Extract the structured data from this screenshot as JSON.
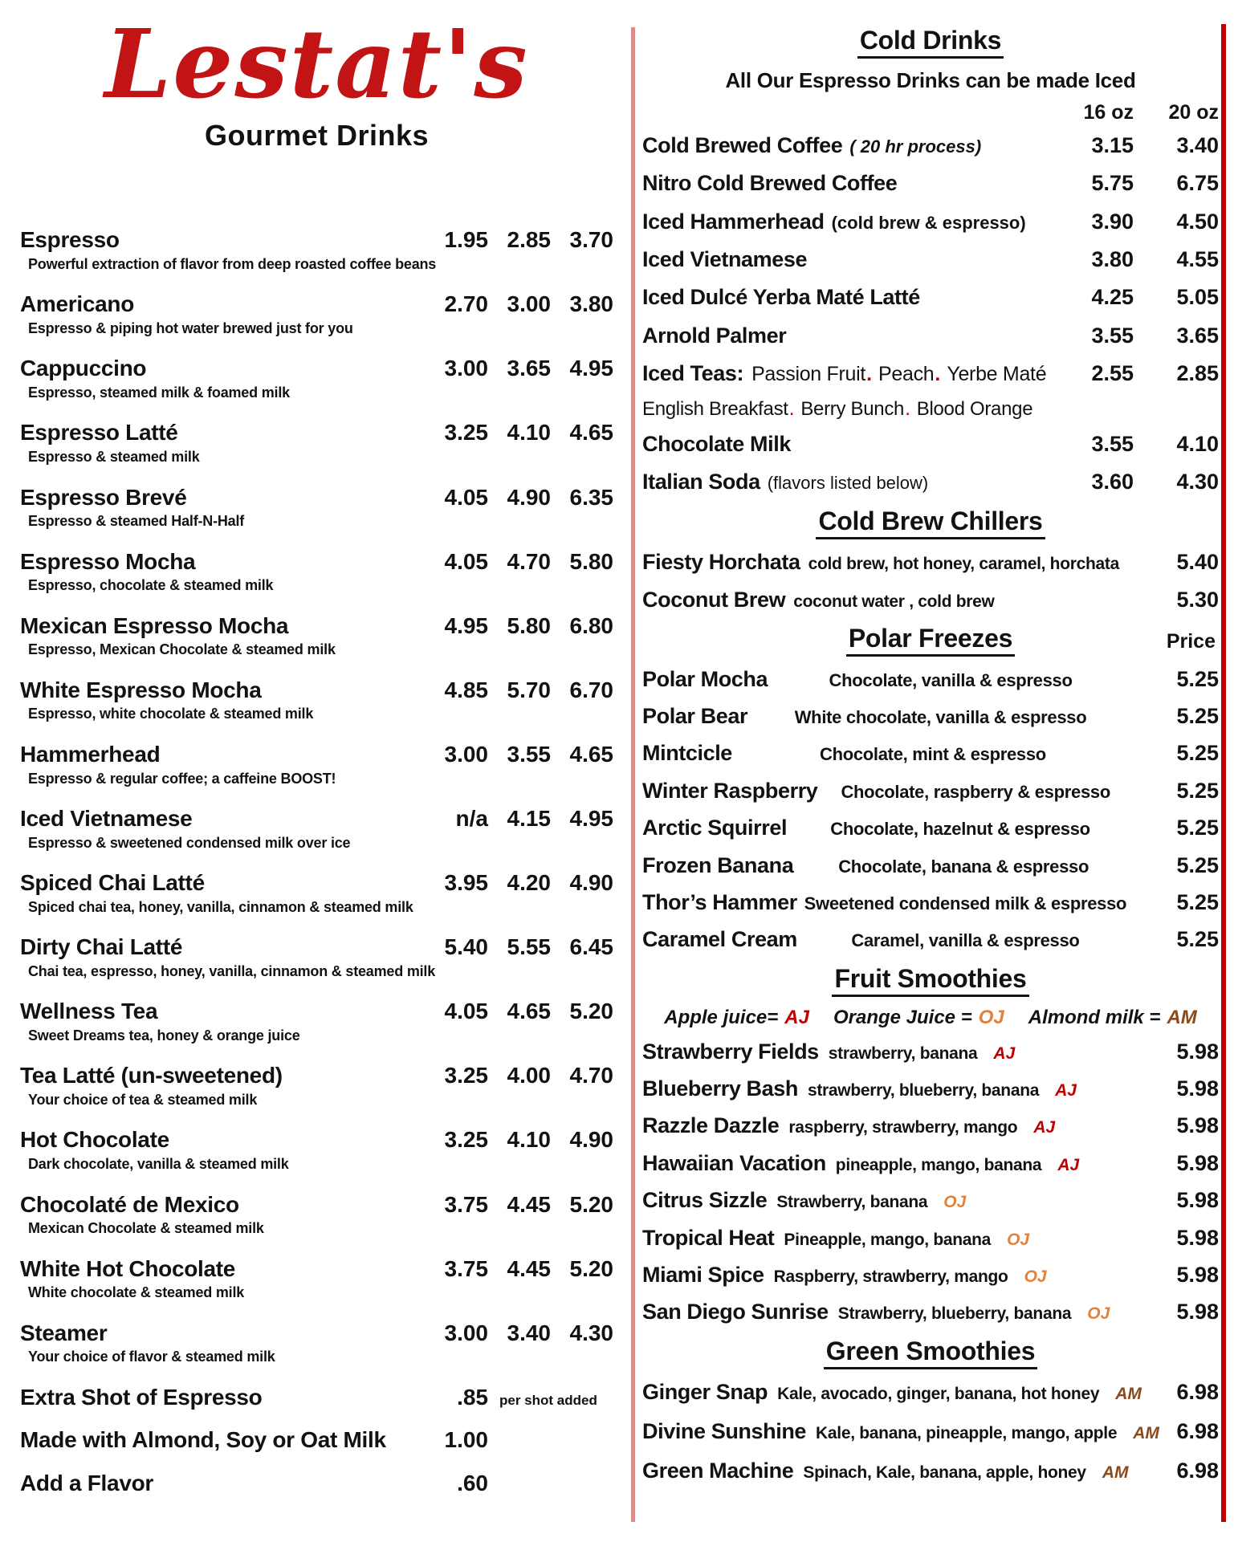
{
  "colors": {
    "logo_red": "#C21414",
    "accent_red": "#C00000",
    "divider_salmon": "#D98C8C",
    "orange": "#E2823A",
    "brown": "#8C4A1A",
    "text": "#121212"
  },
  "brand": {
    "name": "Lestat's",
    "subtitle": "Gourmet Drinks"
  },
  "left_menu": {
    "items": [
      {
        "name": "Espresso",
        "desc": "Powerful extraction of flavor from deep roasted coffee beans",
        "p1": "1.95",
        "p2": "2.85",
        "p3": "3.70"
      },
      {
        "name": "Americano",
        "desc": "Espresso & piping hot water brewed just for you",
        "p1": "2.70",
        "p2": "3.00",
        "p3": "3.80"
      },
      {
        "name": "Cappuccino",
        "desc": "Espresso, steamed milk & foamed milk",
        "p1": "3.00",
        "p2": "3.65",
        "p3": "4.95"
      },
      {
        "name": "Espresso Latté",
        "desc": "Espresso & steamed milk",
        "p1": "3.25",
        "p2": "4.10",
        "p3": "4.65"
      },
      {
        "name": "Espresso Brevé",
        "desc": "Espresso & steamed Half-N-Half",
        "p1": "4.05",
        "p2": "4.90",
        "p3": "6.35"
      },
      {
        "name": "Espresso Mocha",
        "desc": "Espresso, chocolate & steamed milk",
        "p1": "4.05",
        "p2": "4.70",
        "p3": "5.80"
      },
      {
        "name": "Mexican Espresso Mocha",
        "desc": "Espresso, Mexican Chocolate & steamed milk",
        "p1": "4.95",
        "p2": "5.80",
        "p3": "6.80"
      },
      {
        "name": "White Espresso Mocha",
        "desc": "Espresso, white chocolate & steamed milk",
        "p1": "4.85",
        "p2": "5.70",
        "p3": "6.70"
      },
      {
        "name": "Hammerhead",
        "desc": "Espresso & regular coffee; a caffeine BOOST!",
        "p1": "3.00",
        "p2": "3.55",
        "p3": "4.65"
      },
      {
        "name": "Iced Vietnamese",
        "desc": "Espresso & sweetened condensed milk over ice",
        "p1": "n/a",
        "p2": "4.15",
        "p3": "4.95"
      },
      {
        "name": "Spiced Chai Latté",
        "desc": "Spiced chai tea, honey, vanilla, cinnamon & steamed milk",
        "p1": "3.95",
        "p2": "4.20",
        "p3": "4.90"
      },
      {
        "name": "Dirty Chai Latté",
        "desc": "Chai tea, espresso, honey, vanilla, cinnamon & steamed milk",
        "p1": "5.40",
        "p2": "5.55",
        "p3": "6.45"
      },
      {
        "name": "Wellness Tea",
        "desc": "Sweet Dreams tea, honey & orange juice",
        "p1": "4.05",
        "p2": "4.65",
        "p3": "5.20"
      },
      {
        "name": "Tea Latté  (un-sweetened)",
        "desc": "Your choice of tea & steamed milk",
        "p1": "3.25",
        "p2": "4.00",
        "p3": "4.70"
      },
      {
        "name": "Hot Chocolate",
        "desc": "Dark chocolate, vanilla & steamed milk",
        "p1": "3.25",
        "p2": "4.10",
        "p3": "4.90"
      },
      {
        "name": "Chocolaté de Mexico",
        "desc": "Mexican Chocolate & steamed milk",
        "p1": "3.75",
        "p2": "4.45",
        "p3": "5.20"
      },
      {
        "name": "White Hot Chocolate",
        "desc": "White chocolate & steamed milk",
        "p1": "3.75",
        "p2": "4.45",
        "p3": "5.20"
      },
      {
        "name": "Steamer",
        "desc": "Your choice of flavor & steamed milk",
        "p1": "3.00",
        "p2": "3.40",
        "p3": "4.30"
      }
    ],
    "extras": [
      {
        "name": "Extra Shot of Espresso",
        "price": ".85",
        "note": "per shot added"
      },
      {
        "name": "Made with Almond, Soy or Oat Milk",
        "price": "1.00",
        "note": ""
      },
      {
        "name": "Add a Flavor",
        "price": ".60",
        "note": ""
      }
    ]
  },
  "cold_drinks": {
    "title": "Cold Drinks",
    "subtitle": "All Our Espresso Drinks can be made Iced",
    "size_16": "16 oz",
    "size_20": "20 oz",
    "items_top": [
      {
        "name": "Cold Brewed Coffee",
        "note_i": "( 20 hr  process)",
        "note_b": "",
        "note_r": "",
        "p16": "3.15",
        "p20": "3.40"
      },
      {
        "name": "Nitro Cold Brewed Coffee",
        "note_i": "",
        "note_b": "",
        "note_r": "",
        "p16": "5.75",
        "p20": "6.75"
      },
      {
        "name": "Iced Hammerhead",
        "note_i": "",
        "note_b": "(cold brew & espresso)",
        "note_r": "",
        "p16": "3.90",
        "p20": "4.50"
      },
      {
        "name": "Iced Vietnamese",
        "note_i": "",
        "note_b": "",
        "note_r": "",
        "p16": "3.80",
        "p20": "4.55"
      },
      {
        "name": "Iced Dulcé Yerba Maté Latté",
        "note_i": "",
        "note_b": "",
        "note_r": "",
        "p16": "4.25",
        "p20": "5.05"
      },
      {
        "name": "Arnold Palmer",
        "note_i": "",
        "note_b": "",
        "note_r": "",
        "p16": "3.55",
        "p20": "3.65"
      }
    ],
    "iced_teas": {
      "label": "Iced Teas:",
      "p16": "2.55",
      "p20": "2.85",
      "line1": [
        {
          "name": "Passion Fruit",
          "sep": "."
        },
        {
          "name": "Peach",
          "sep": "."
        },
        {
          "name": "Yerbe Maté",
          "sep": ""
        }
      ],
      "line2": [
        {
          "name": "English Breakfast",
          "sep": "."
        },
        {
          "name": "Berry Bunch",
          "sep": "."
        },
        {
          "name": "Blood Orange",
          "sep": ""
        }
      ]
    },
    "items_bottom": [
      {
        "name": "Chocolate Milk",
        "note_i": "",
        "note_b": "",
        "note_r": "",
        "p16": "3.55",
        "p20": "4.10"
      },
      {
        "name": "Italian Soda",
        "note_i": "",
        "note_b": "",
        "note_r": "(flavors listed below)",
        "p16": "3.60",
        "p20": "4.30"
      }
    ]
  },
  "cold_brew_chillers": {
    "title": "Cold Brew Chillers",
    "items": [
      {
        "name": "Fiesty Horchata",
        "desc": "cold brew, hot honey, caramel, horchata",
        "price": "5.40"
      },
      {
        "name": "Coconut Brew",
        "desc": "coconut water , cold brew",
        "price": "5.30"
      }
    ]
  },
  "polar_freezes": {
    "title": "Polar Freezes",
    "price_header": "Price",
    "items": [
      {
        "name": "Polar Mocha",
        "desc": "Chocolate, vanilla & espresso",
        "price": "5.25"
      },
      {
        "name": "Polar Bear",
        "desc": "White chocolate, vanilla & espresso",
        "price": "5.25"
      },
      {
        "name": "Mintcicle",
        "desc": "Chocolate, mint & espresso",
        "price": "5.25"
      },
      {
        "name": "Winter Raspberry",
        "desc": "Chocolate, raspberry & espresso",
        "price": "5.25"
      },
      {
        "name": "Arctic Squirrel",
        "desc": "Chocolate, hazelnut & espresso",
        "price": "5.25"
      },
      {
        "name": "Frozen Banana",
        "desc": "Chocolate, banana & espresso",
        "price": "5.25"
      },
      {
        "name": "Thor’s Hammer",
        "desc": "Sweetened condensed milk & espresso",
        "price": "5.25"
      },
      {
        "name": "Caramel Cream",
        "desc": "Caramel, vanilla & espresso",
        "price": "5.25"
      }
    ]
  },
  "fruit_smoothies": {
    "title": "Fruit Smoothies",
    "legend": [
      {
        "label": "Apple juice=",
        "code": "AJ",
        "color": "#C00000"
      },
      {
        "label": "Orange Juice =",
        "code": "OJ",
        "color": "#E2823A"
      },
      {
        "label": "Almond milk  =",
        "code": "AM",
        "color": "#8C4A1A"
      }
    ],
    "items": [
      {
        "name": "Strawberry Fields",
        "desc": "strawberry, banana",
        "code": "AJ",
        "code_color": "#C00000",
        "price": "5.98"
      },
      {
        "name": "Blueberry Bash",
        "desc": "strawberry, blueberry, banana",
        "code": "AJ",
        "code_color": "#C00000",
        "price": "5.98"
      },
      {
        "name": "Razzle Dazzle",
        "desc": "raspberry, strawberry, mango",
        "code": "AJ",
        "code_color": "#C00000",
        "price": "5.98"
      },
      {
        "name": "Hawaiian Vacation",
        "desc": "pineapple, mango, banana",
        "code": "AJ",
        "code_color": "#C00000",
        "price": "5.98"
      },
      {
        "name": "Citrus Sizzle",
        "desc": "Strawberry, banana",
        "code": "OJ",
        "code_color": "#E2823A",
        "price": "5.98"
      },
      {
        "name": "Tropical Heat",
        "desc": "Pineapple, mango, banana",
        "code": "OJ",
        "code_color": "#E2823A",
        "price": "5.98"
      },
      {
        "name": "Miami Spice",
        "desc": "Raspberry, strawberry, mango",
        "code": "OJ",
        "code_color": "#E2823A",
        "price": "5.98"
      },
      {
        "name": "San Diego Sunrise",
        "desc": "Strawberry, blueberry, banana",
        "code": "OJ",
        "code_color": "#E2823A",
        "price": "5.98"
      }
    ]
  },
  "green_smoothies": {
    "title": "Green Smoothies",
    "items": [
      {
        "name": "Ginger Snap",
        "desc": "Kale, avocado, ginger, banana, hot honey",
        "code": "AM",
        "code_color": "#8C4A1A",
        "price": "6.98"
      },
      {
        "name": "Divine Sunshine",
        "desc": "Kale, banana, pineapple, mango, apple",
        "code": "AM",
        "code_color": "#8C4A1A",
        "price": "6.98"
      },
      {
        "name": "Green Machine",
        "desc": "Spinach, Kale, banana, apple, honey",
        "code": "AM",
        "code_color": "#8C4A1A",
        "price": "6.98"
      }
    ]
  }
}
